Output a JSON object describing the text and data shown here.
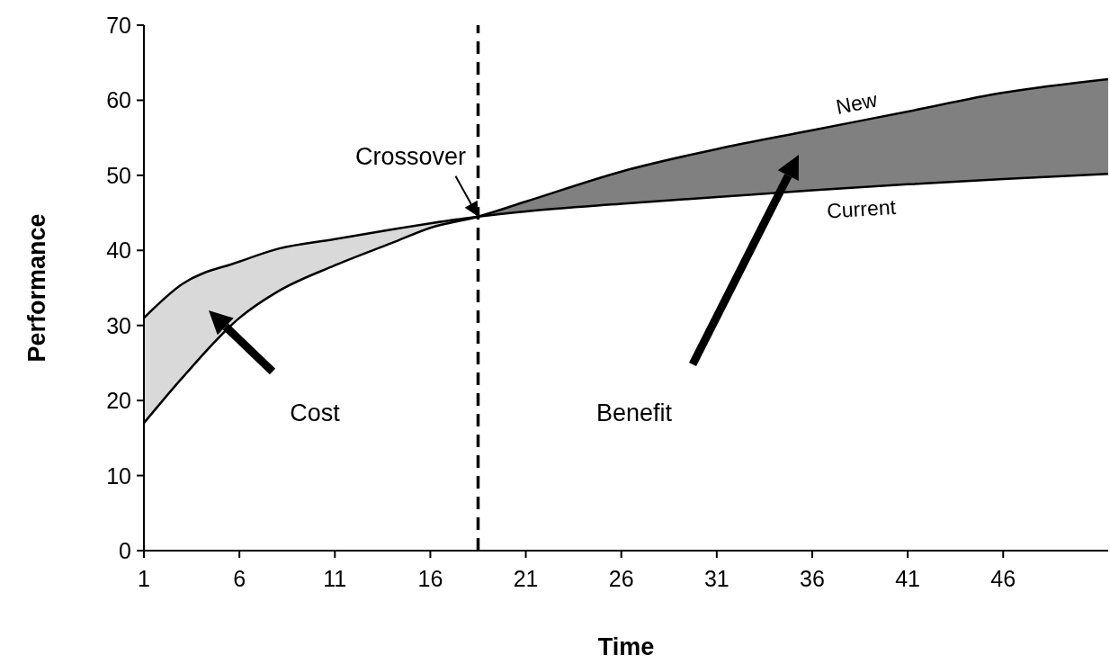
{
  "chart_data": {
    "type": "line",
    "xlabel": "Time",
    "ylabel": "Performance",
    "xlim": [
      1,
      51.5
    ],
    "ylim": [
      0,
      70
    ],
    "xticks": [
      1,
      6,
      11,
      16,
      21,
      26,
      31,
      36,
      41,
      46
    ],
    "yticks": [
      0,
      10,
      20,
      30,
      40,
      50,
      60,
      70
    ],
    "marker": "none",
    "line_style": "solid",
    "series": [
      {
        "name": "New",
        "color": "#000000",
        "x": [
          1,
          3,
          6,
          8,
          11,
          14,
          16,
          18.5,
          21,
          26,
          31,
          36,
          41,
          46,
          51.5
        ],
        "values": [
          17,
          23,
          31,
          34.5,
          38,
          41,
          43,
          44.5,
          46.5,
          50.5,
          53.5,
          56,
          58.5,
          61,
          62.8
        ],
        "lower": [
          null,
          null,
          null,
          null,
          null,
          null,
          null,
          44.5,
          45.2,
          46.2,
          47.1,
          48,
          48.8,
          49.5,
          50.2
        ],
        "upper": [
          null,
          null,
          null,
          null,
          null,
          null,
          null,
          44.5,
          46.5,
          50.5,
          53.5,
          56,
          58.5,
          61,
          62.8
        ]
      },
      {
        "name": "Current",
        "color": "#000000",
        "x": [
          1,
          3,
          6,
          8,
          11,
          14,
          16,
          18.5,
          21,
          26,
          31,
          36,
          41,
          46,
          51.5
        ],
        "values": [
          31,
          35.5,
          38.5,
          40.2,
          41.5,
          42.8,
          43.6,
          44.5,
          45.2,
          46.2,
          47.1,
          48,
          48.8,
          49.5,
          50.2
        ],
        "lower": [
          17,
          23,
          31,
          34.5,
          38,
          41,
          43,
          44.5,
          null,
          null,
          null,
          null,
          null,
          null,
          null
        ],
        "upper": [
          31,
          35.5,
          38.5,
          40.2,
          41.5,
          42.8,
          43.6,
          44.5,
          null,
          null,
          null,
          null,
          null,
          null,
          null
        ]
      }
    ],
    "ref_lines": [
      {
        "axis": "x",
        "value": 18.5,
        "color": "#000000",
        "line_style": "dashed"
      }
    ],
    "annotations": [
      {
        "text": "Crossover",
        "x": 18.5,
        "y": 44.5
      },
      "Cost",
      "Benefit"
    ]
  }
}
